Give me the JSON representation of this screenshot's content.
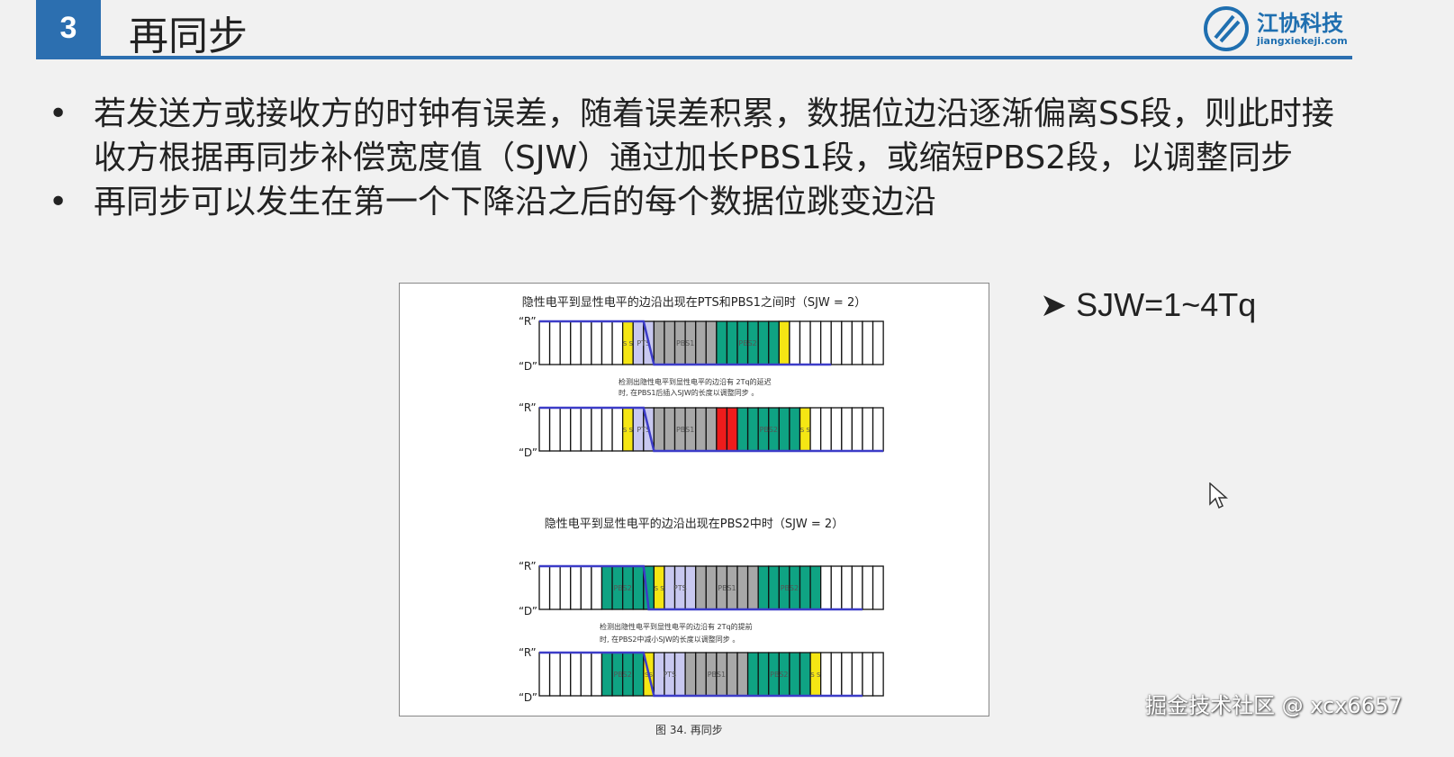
{
  "header": {
    "number": "3",
    "title": "再同步",
    "logo": {
      "cn": "江协科技",
      "en": "jiangxiekeji.com"
    },
    "accent": "#2c6fb0"
  },
  "bullets": [
    "若发送方或接收方的时钟有误差，随着误差积累，数据位边沿逐渐偏离SS段，则此时接收方根据再同步补偿宽度值（SJW）通过加长PBS1段，或缩短PBS2段，以调整同步",
    "再同步可以发生在第一个下降沿之后的每个数据位跳变边沿"
  ],
  "side_note": "SJW=1~4Tq",
  "diagram": {
    "heading1": "隐性电平到显性电平的边沿出现在PTS和PBS1之间时（SJW = 2）",
    "note1a": "检测出隐性电平到显性电平的边沿有  2Tq的延迟",
    "note1b": "时, 在PBS1后插入SJW的长度以调整同步 。",
    "heading2": "隐性电平到显性电平的边沿出现在PBS2中时（SJW = 2）",
    "note2a": "检测出隐性电平到显性电平的边沿有  2Tq的提前",
    "note2b": "时, 在PBS2中减小SJW的长度以调整同步 。",
    "label_r": "“R”",
    "label_d": "“D”",
    "colors": {
      "white": "#ffffff",
      "ss": "#f5e614",
      "pts": "#c8c8f0",
      "pbs1": "#a8a8a8",
      "pbs2": "#0fa383",
      "sjw": "#ee1c1c",
      "signal": "#3c3cc8"
    },
    "rows": [
      {
        "segments": [
          [
            "white",
            8,
            ""
          ],
          [
            "ss",
            1,
            "S S"
          ],
          [
            "pts",
            2,
            "PTS"
          ],
          [
            "pbs1",
            6,
            "PBS1"
          ],
          [
            "pbs2",
            6,
            "PBS2"
          ],
          [
            "ss",
            1,
            ""
          ],
          [
            "white",
            9,
            ""
          ]
        ],
        "fall": [
          10,
          11
        ],
        "low_end": 28
      },
      {
        "segments": [
          [
            "white",
            8,
            ""
          ],
          [
            "ss",
            1,
            "S S"
          ],
          [
            "pts",
            2,
            "PTS"
          ],
          [
            "pbs1",
            6,
            "PBS1"
          ],
          [
            "sjw",
            2,
            ""
          ],
          [
            "pbs2",
            6,
            "PBS2"
          ],
          [
            "ss",
            1,
            "S S"
          ],
          [
            "white",
            7,
            ""
          ]
        ],
        "fall": [
          10,
          11
        ],
        "low_end": 33
      },
      {
        "segments": [
          [
            "white",
            6,
            ""
          ],
          [
            "pbs2",
            4,
            "PBS2"
          ],
          [
            "pbs2",
            1,
            ""
          ],
          [
            "ss",
            1,
            "S S"
          ],
          [
            "pts",
            3,
            "PTS"
          ],
          [
            "pbs1",
            6,
            "PBS1"
          ],
          [
            "pbs2",
            6,
            "PBS2"
          ],
          [
            "white",
            6,
            ""
          ]
        ],
        "fall": [
          10,
          10.5
        ],
        "low_end": 31
      },
      {
        "segments": [
          [
            "white",
            6,
            ""
          ],
          [
            "pbs2",
            4,
            "PBS2"
          ],
          [
            "ss",
            1,
            "SS"
          ],
          [
            "pts",
            3,
            "PTS"
          ],
          [
            "pbs1",
            6,
            "PBS1"
          ],
          [
            "pbs2",
            6,
            "PBS2"
          ],
          [
            "ss",
            1,
            "S S"
          ],
          [
            "white",
            6,
            ""
          ]
        ],
        "fall": [
          10,
          11
        ],
        "low_end": 31
      }
    ],
    "caption": "图 34.   再同步"
  },
  "watermark": "掘金技术社区 @ xcx6657"
}
